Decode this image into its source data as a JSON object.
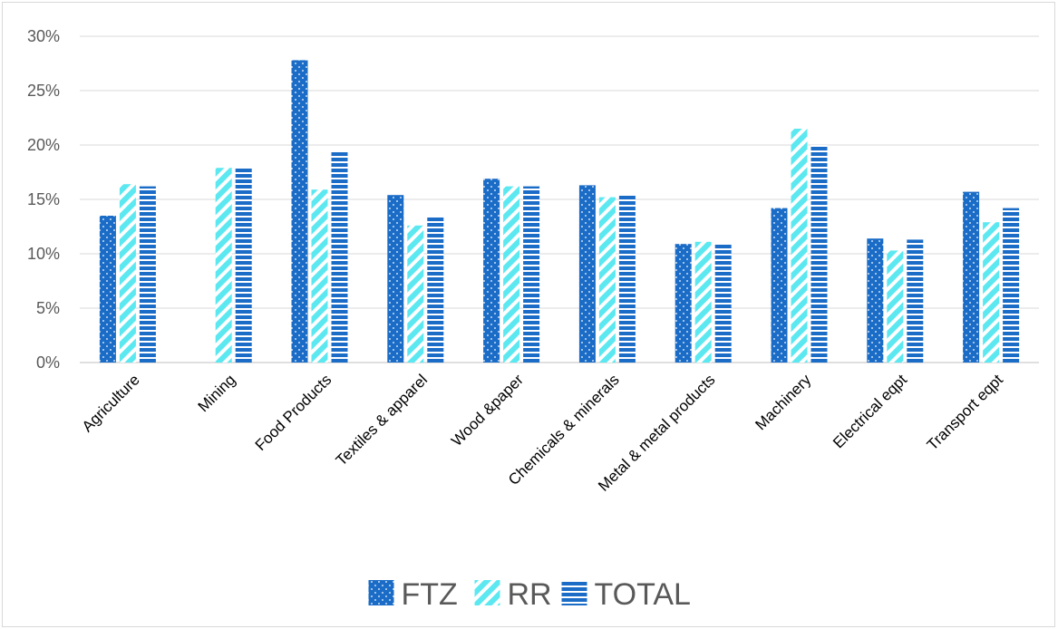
{
  "chart_data": {
    "type": "bar",
    "categories": [
      "Agriculture",
      "Mining",
      "Food Products",
      "Textiles & apparel",
      "Wood &paper",
      "Chemicals & minerals",
      "Metal & metal products",
      "Machinery",
      "Electrical eqpt",
      "Transport eqpt"
    ],
    "series": [
      {
        "name": "FTZ",
        "values": [
          13.5,
          null,
          27.8,
          15.4,
          16.9,
          16.3,
          10.9,
          14.2,
          11.4,
          15.7
        ],
        "color": "#1a6cc7",
        "pattern": "dots"
      },
      {
        "name": "RR",
        "values": [
          16.4,
          17.9,
          15.9,
          12.6,
          16.2,
          15.2,
          11.1,
          21.5,
          10.3,
          12.9
        ],
        "color": "#5ce8f0",
        "pattern": "diagonal-stripes"
      },
      {
        "name": "TOTAL",
        "values": [
          16.2,
          17.9,
          19.5,
          13.5,
          16.2,
          15.5,
          10.9,
          20.0,
          11.3,
          14.2
        ],
        "color": "#1a6cc7",
        "pattern": "horizontal-stripes"
      }
    ],
    "yticks": [
      "0%",
      "5%",
      "10%",
      "15%",
      "20%",
      "25%",
      "30%"
    ],
    "ylim": [
      0,
      30
    ],
    "grid": true,
    "legend": "bottom"
  }
}
